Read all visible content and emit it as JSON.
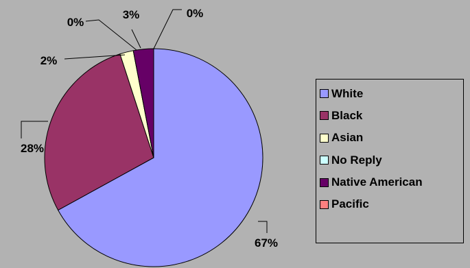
{
  "chart_data": {
    "type": "pie",
    "title": "",
    "legend_position": "right",
    "slices": [
      {
        "name": "White",
        "value": 67,
        "label": "67%",
        "color": "#9999ff"
      },
      {
        "name": "Black",
        "value": 28,
        "label": "28%",
        "color": "#993366"
      },
      {
        "name": "Asian",
        "value": 2,
        "label": "2%",
        "color": "#ffffcc"
      },
      {
        "name": "No Reply",
        "value": 0,
        "label": "0%",
        "color": "#ccffff"
      },
      {
        "name": "Native American",
        "value": 3,
        "label": "3%",
        "color": "#660066"
      },
      {
        "name": "Pacific",
        "value": 0,
        "label": "0%",
        "color": "#ff8080"
      }
    ]
  }
}
